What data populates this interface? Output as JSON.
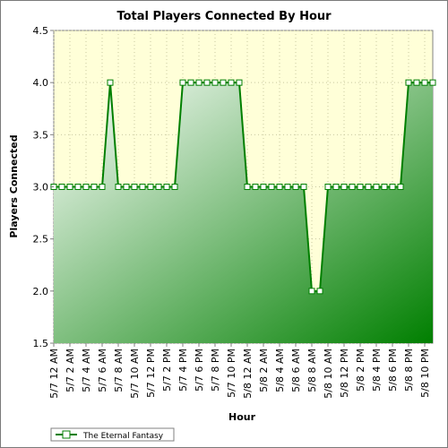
{
  "chart_data": {
    "type": "area",
    "title": "Total Players Connected By Hour",
    "xlabel": "Hour",
    "ylabel": "Players Connected",
    "ylim": [
      1.5,
      4.5
    ],
    "y_ticks": [
      "1.5",
      "2.0",
      "2.5",
      "3.0",
      "3.5",
      "4.0",
      "4.5"
    ],
    "x": [
      "5/7 12 AM",
      "",
      "5/7 2 AM",
      "",
      "5/7 4 AM",
      "",
      "5/7 6 AM",
      "",
      "5/7 8 AM",
      "",
      "5/7 10 AM",
      "",
      "5/7 12 PM",
      "",
      "5/7 2 PM",
      "",
      "5/7 4 PM",
      "",
      "5/7 6 PM",
      "",
      "5/7 8 PM",
      "",
      "5/7 10 PM",
      "",
      "5/8 12 AM",
      "",
      "5/8 2 AM",
      "",
      "5/8 4 AM",
      "",
      "5/8 6 AM",
      "",
      "5/8 8 AM",
      "",
      "5/8 10 AM",
      "",
      "5/8 12 PM",
      "",
      "5/8 2 PM",
      "",
      "5/8 4 PM",
      "",
      "5/8 6 PM",
      "",
      "5/8 8 PM",
      "",
      "5/8 10 PM",
      ""
    ],
    "x_tick_labels": [
      "5/7 12 AM",
      "5/7 2 AM",
      "5/7 4 AM",
      "5/7 6 AM",
      "5/7 8 AM",
      "5/7 10 AM",
      "5/7 12 PM",
      "5/7 2 PM",
      "5/7 4 PM",
      "5/7 6 PM",
      "5/7 8 PM",
      "5/7 10 PM",
      "5/8 12 AM",
      "5/8 2 AM",
      "5/8 4 AM",
      "5/8 6 AM",
      "5/8 8 AM",
      "5/8 10 AM",
      "5/8 12 PM",
      "5/8 2 PM",
      "5/8 4 PM",
      "5/8 6 PM",
      "5/8 8 PM",
      "5/8 10 PM"
    ],
    "series": [
      {
        "name": "The Eternal Fantasy",
        "color": "#007f00",
        "values": [
          3,
          3,
          3,
          3,
          3,
          3,
          3,
          4,
          3,
          3,
          3,
          3,
          3,
          3,
          3,
          3,
          4,
          4,
          4,
          4,
          4,
          4,
          4,
          4,
          3,
          3,
          3,
          3,
          3,
          3,
          3,
          3,
          2,
          2,
          3,
          3,
          3,
          3,
          3,
          3,
          3,
          3,
          3,
          3,
          4,
          4,
          4,
          4
        ]
      }
    ],
    "grid": true,
    "legend_position": "bottom-left",
    "colors": {
      "plot_background": "#ffffd8",
      "line": "#007f00",
      "marker_fill": "#ffffff",
      "grid": "#c8c8a0"
    }
  }
}
